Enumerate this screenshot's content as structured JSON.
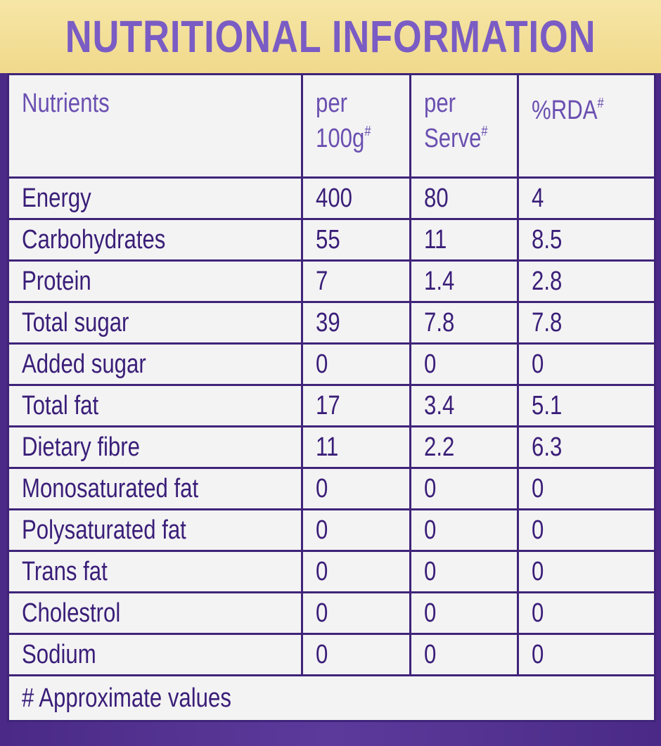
{
  "header": {
    "title": "NUTRITIONAL INFORMATION"
  },
  "table": {
    "columns": [
      {
        "lines": [
          "Nutrients"
        ]
      },
      {
        "lines": [
          "per",
          "100g"
        ],
        "note": "#"
      },
      {
        "lines": [
          "per",
          "Serve"
        ],
        "note": "#"
      },
      {
        "lines": [
          "%RDA"
        ],
        "note": "#"
      }
    ],
    "rows": [
      [
        "Energy",
        400,
        80,
        4
      ],
      [
        "Carbohydrates",
        55,
        11,
        8.5
      ],
      [
        "Protein",
        7,
        1.4,
        2.8
      ],
      [
        "Total sugar",
        39,
        7.8,
        7.8
      ],
      [
        "Added sugar",
        0,
        0,
        0
      ],
      [
        "Total fat",
        17,
        3.4,
        5.1
      ],
      [
        "Dietary fibre",
        11,
        2.2,
        6.3
      ],
      [
        "Monosaturated fat",
        0,
        0,
        0
      ],
      [
        "Polysaturated fat",
        0,
        0,
        0
      ],
      [
        "Trans fat",
        0,
        0,
        0
      ],
      [
        "Cholestrol",
        0,
        0,
        0
      ],
      [
        "Sodium",
        0,
        0,
        0
      ]
    ],
    "footnote": "# Approximate values"
  }
}
